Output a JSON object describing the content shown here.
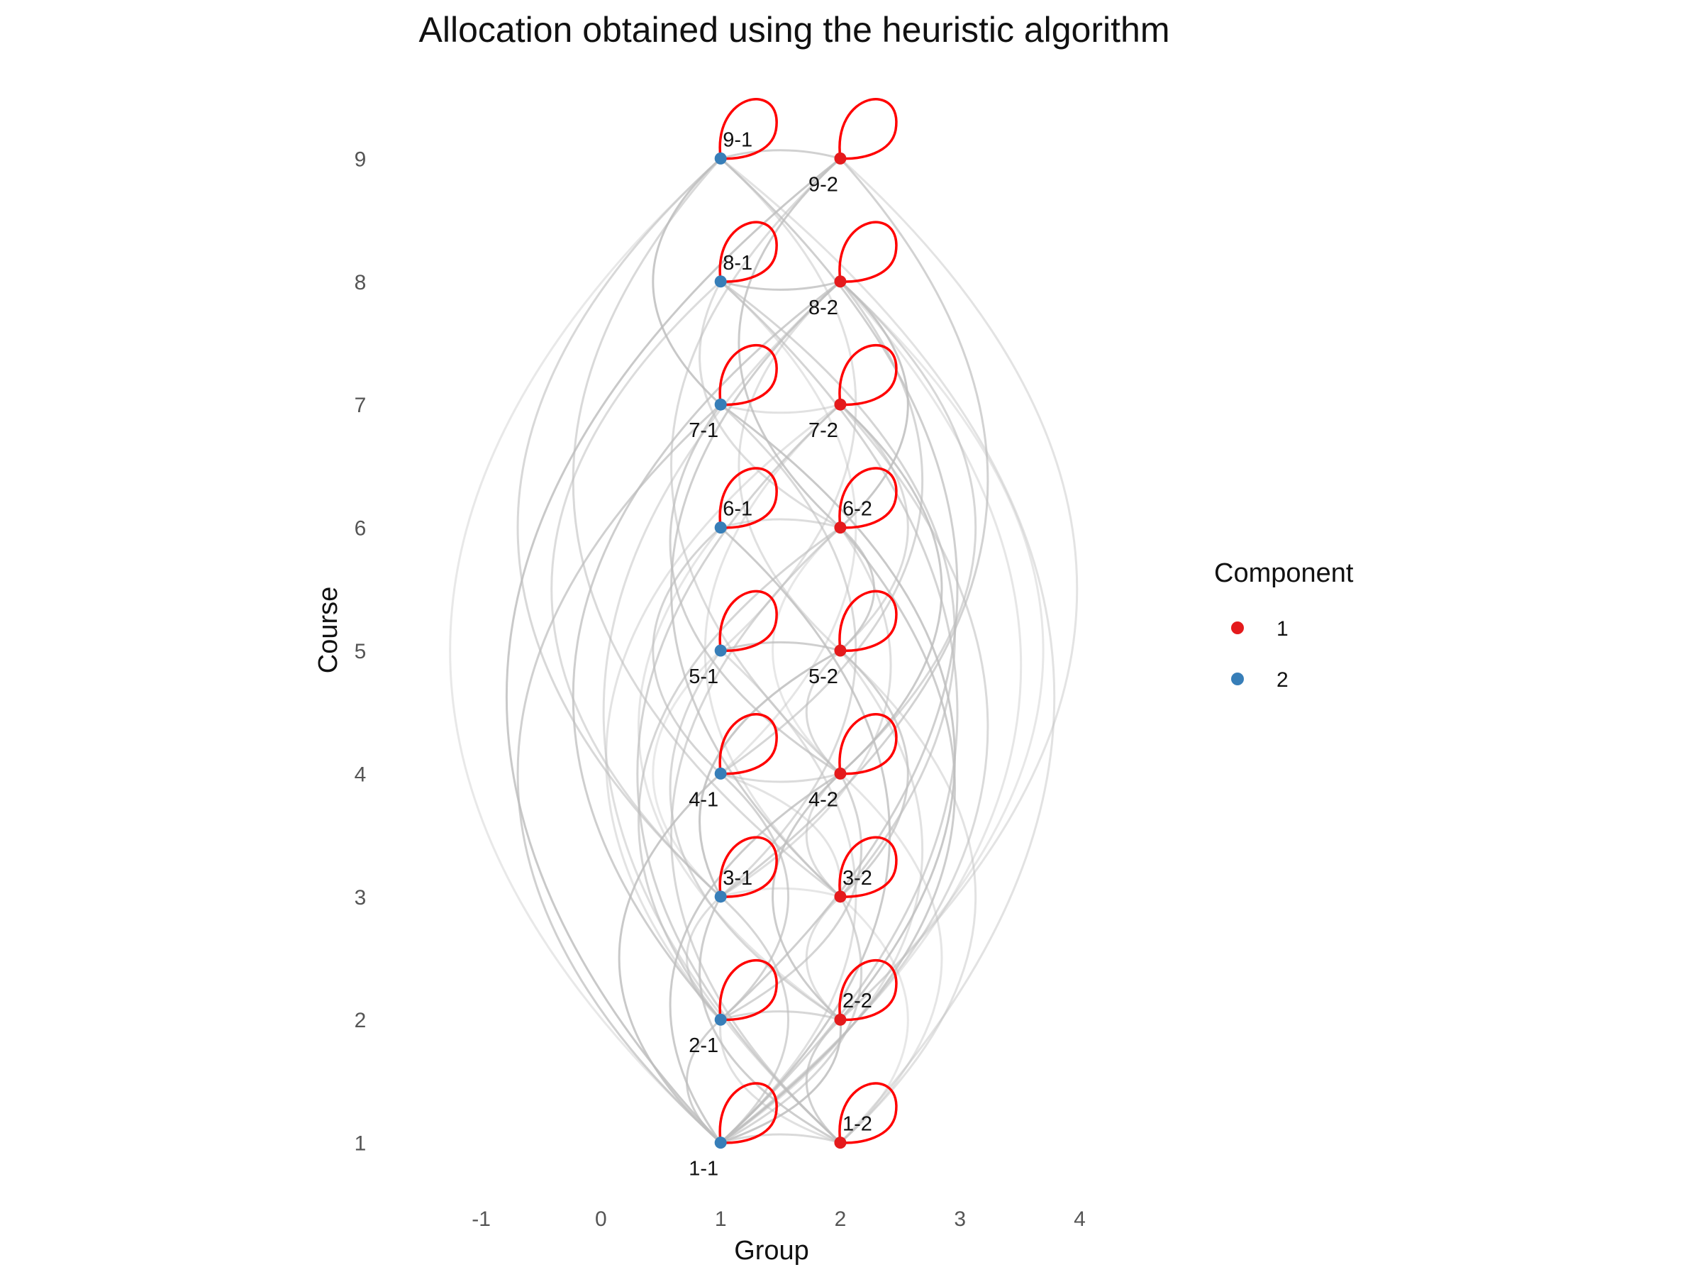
{
  "chart_data": {
    "type": "network-graph",
    "title": "Allocation obtained using the heuristic algorithm",
    "xlabel": "Group",
    "ylabel": "Course",
    "xlim": [
      -1.3,
      4.4
    ],
    "ylim": [
      0.6,
      9.55
    ],
    "xticks": [
      {
        "value": -1,
        "label": "-1"
      },
      {
        "value": 0,
        "label": "0"
      },
      {
        "value": 1,
        "label": "1"
      },
      {
        "value": 2,
        "label": "2"
      },
      {
        "value": 3,
        "label": "3"
      },
      {
        "value": 4,
        "label": "4"
      }
    ],
    "yticks": [
      {
        "value": 1,
        "label": "1"
      },
      {
        "value": 2,
        "label": "2"
      },
      {
        "value": 3,
        "label": "3"
      },
      {
        "value": 4,
        "label": "4"
      },
      {
        "value": 5,
        "label": "5"
      },
      {
        "value": 6,
        "label": "6"
      },
      {
        "value": 7,
        "label": "7"
      },
      {
        "value": 8,
        "label": "8"
      },
      {
        "value": 9,
        "label": "9"
      }
    ],
    "grid": false,
    "legend": {
      "title": "Component",
      "position": "right",
      "entries": [
        {
          "label": "1",
          "color": "#e41a1c"
        },
        {
          "label": "2",
          "color": "#377eb8"
        }
      ]
    },
    "self_loop_color": "#ff0000",
    "edge_color": "#bdbdbd",
    "nodes": [
      {
        "id": "1-1",
        "label": "1-1",
        "group": 1,
        "course": 1,
        "component": "2",
        "label_side": "below"
      },
      {
        "id": "2-1",
        "label": "2-1",
        "group": 1,
        "course": 2,
        "component": "2",
        "label_side": "below"
      },
      {
        "id": "3-1",
        "label": "3-1",
        "group": 1,
        "course": 3,
        "component": "2",
        "label_side": "above"
      },
      {
        "id": "4-1",
        "label": "4-1",
        "group": 1,
        "course": 4,
        "component": "2",
        "label_side": "below"
      },
      {
        "id": "5-1",
        "label": "5-1",
        "group": 1,
        "course": 5,
        "component": "2",
        "label_side": "below"
      },
      {
        "id": "6-1",
        "label": "6-1",
        "group": 1,
        "course": 6,
        "component": "2",
        "label_side": "above"
      },
      {
        "id": "7-1",
        "label": "7-1",
        "group": 1,
        "course": 7,
        "component": "2",
        "label_side": "below"
      },
      {
        "id": "8-1",
        "label": "8-1",
        "group": 1,
        "course": 8,
        "component": "2",
        "label_side": "above"
      },
      {
        "id": "9-1",
        "label": "9-1",
        "group": 1,
        "course": 9,
        "component": "2",
        "label_side": "above"
      },
      {
        "id": "1-2",
        "label": "1-2",
        "group": 2,
        "course": 1,
        "component": "1",
        "label_side": "above"
      },
      {
        "id": "2-2",
        "label": "2-2",
        "group": 2,
        "course": 2,
        "component": "1",
        "label_side": "above"
      },
      {
        "id": "3-2",
        "label": "3-2",
        "group": 2,
        "course": 3,
        "component": "1",
        "label_side": "above"
      },
      {
        "id": "4-2",
        "label": "4-2",
        "group": 2,
        "course": 4,
        "component": "1",
        "label_side": "below"
      },
      {
        "id": "5-2",
        "label": "5-2",
        "group": 2,
        "course": 5,
        "component": "1",
        "label_side": "below"
      },
      {
        "id": "6-2",
        "label": "6-2",
        "group": 2,
        "course": 6,
        "component": "1",
        "label_side": "above"
      },
      {
        "id": "7-2",
        "label": "7-2",
        "group": 2,
        "course": 7,
        "component": "1",
        "label_side": "below"
      },
      {
        "id": "8-2",
        "label": "8-2",
        "group": 2,
        "course": 8,
        "component": "1",
        "label_side": "below"
      },
      {
        "id": "9-2",
        "label": "9-2",
        "group": 2,
        "course": 9,
        "component": "1",
        "label_side": "below"
      }
    ],
    "edges": [
      {
        "from": "9-1",
        "to": "1-1"
      },
      {
        "from": "9-1",
        "to": "2-1"
      },
      {
        "from": "9-1",
        "to": "3-1"
      },
      {
        "from": "9-1",
        "to": "5-1"
      },
      {
        "from": "9-1",
        "to": "7-1"
      },
      {
        "from": "9-1",
        "to": "9-2"
      },
      {
        "from": "9-1",
        "to": "3-2"
      },
      {
        "from": "9-1",
        "to": "1-2"
      },
      {
        "from": "9-2",
        "to": "1-1"
      },
      {
        "from": "9-2",
        "to": "3-1"
      },
      {
        "from": "9-2",
        "to": "4-2"
      },
      {
        "from": "9-2",
        "to": "2-2"
      },
      {
        "from": "9-2",
        "to": "6-2"
      },
      {
        "from": "8-1",
        "to": "1-1"
      },
      {
        "from": "8-1",
        "to": "3-1"
      },
      {
        "from": "8-1",
        "to": "4-1"
      },
      {
        "from": "8-1",
        "to": "8-2"
      },
      {
        "from": "8-1",
        "to": "3-2"
      },
      {
        "from": "8-1",
        "to": "6-2"
      },
      {
        "from": "8-2",
        "to": "1-1"
      },
      {
        "from": "8-2",
        "to": "2-1"
      },
      {
        "from": "8-2",
        "to": "4-1"
      },
      {
        "from": "8-2",
        "to": "1-2"
      },
      {
        "from": "8-2",
        "to": "2-2"
      },
      {
        "from": "8-2",
        "to": "3-2"
      },
      {
        "from": "8-2",
        "to": "4-2"
      },
      {
        "from": "8-2",
        "to": "5-2"
      },
      {
        "from": "8-2",
        "to": "6-2"
      },
      {
        "from": "7-1",
        "to": "1-1"
      },
      {
        "from": "7-1",
        "to": "3-1"
      },
      {
        "from": "7-1",
        "to": "7-2"
      },
      {
        "from": "7-1",
        "to": "2-2"
      },
      {
        "from": "7-1",
        "to": "4-2"
      },
      {
        "from": "7-2",
        "to": "1-1"
      },
      {
        "from": "7-2",
        "to": "2-1"
      },
      {
        "from": "7-2",
        "to": "4-2"
      },
      {
        "from": "7-2",
        "to": "1-2"
      },
      {
        "from": "7-2",
        "to": "5-2"
      },
      {
        "from": "7-2",
        "to": "3-2"
      },
      {
        "from": "6-1",
        "to": "1-1"
      },
      {
        "from": "6-1",
        "to": "4-1"
      },
      {
        "from": "6-1",
        "to": "6-2"
      },
      {
        "from": "6-1",
        "to": "2-2"
      },
      {
        "from": "6-2",
        "to": "1-1"
      },
      {
        "from": "6-2",
        "to": "2-1"
      },
      {
        "from": "6-2",
        "to": "3-1"
      },
      {
        "from": "6-2",
        "to": "4-2"
      },
      {
        "from": "6-2",
        "to": "5-2"
      },
      {
        "from": "6-2",
        "to": "1-2"
      },
      {
        "from": "5-1",
        "to": "1-1"
      },
      {
        "from": "5-1",
        "to": "3-1"
      },
      {
        "from": "5-1",
        "to": "5-2"
      },
      {
        "from": "5-1",
        "to": "2-2"
      },
      {
        "from": "5-2",
        "to": "1-1"
      },
      {
        "from": "5-2",
        "to": "3-1"
      },
      {
        "from": "5-2",
        "to": "3-2"
      },
      {
        "from": "5-2",
        "to": "4-2"
      },
      {
        "from": "5-2",
        "to": "1-2"
      },
      {
        "from": "4-1",
        "to": "1-1"
      },
      {
        "from": "4-1",
        "to": "2-1"
      },
      {
        "from": "4-1",
        "to": "4-2"
      },
      {
        "from": "4-1",
        "to": "3-2"
      },
      {
        "from": "4-2",
        "to": "1-1"
      },
      {
        "from": "4-2",
        "to": "2-1"
      },
      {
        "from": "4-2",
        "to": "3-2"
      },
      {
        "from": "4-2",
        "to": "1-2"
      },
      {
        "from": "4-2",
        "to": "2-2"
      },
      {
        "from": "3-1",
        "to": "1-1"
      },
      {
        "from": "3-1",
        "to": "2-1"
      },
      {
        "from": "3-1",
        "to": "3-2"
      },
      {
        "from": "3-1",
        "to": "1-2"
      },
      {
        "from": "3-2",
        "to": "1-1"
      },
      {
        "from": "3-2",
        "to": "2-2"
      },
      {
        "from": "3-2",
        "to": "1-2"
      },
      {
        "from": "2-1",
        "to": "1-1"
      },
      {
        "from": "2-1",
        "to": "2-2"
      },
      {
        "from": "2-1",
        "to": "1-2"
      },
      {
        "from": "2-2",
        "to": "1-1"
      },
      {
        "from": "2-2",
        "to": "1-2"
      },
      {
        "from": "1-1",
        "to": "1-2"
      }
    ]
  }
}
